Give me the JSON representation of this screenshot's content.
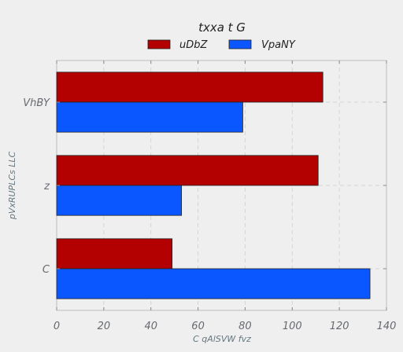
{
  "chart_data": {
    "type": "bar",
    "orientation": "horizontal",
    "title": "txxa t G",
    "xlabel": "C  qAlSVW fvz",
    "ylabel": "pVxRUPLCs LLC",
    "categories": [
      "C",
      "z",
      "VhBY"
    ],
    "series": [
      {
        "name": "uDbZ",
        "color": "#b30000",
        "values": [
          49,
          111,
          113
        ]
      },
      {
        "name": "VpaNY",
        "color": "#0a57ff",
        "values": [
          133,
          53,
          79
        ]
      }
    ],
    "xlim": [
      0,
      140
    ],
    "xticks": [
      0,
      20,
      40,
      60,
      80,
      100,
      120,
      140
    ],
    "grid": true,
    "legend_position": "top-center"
  }
}
